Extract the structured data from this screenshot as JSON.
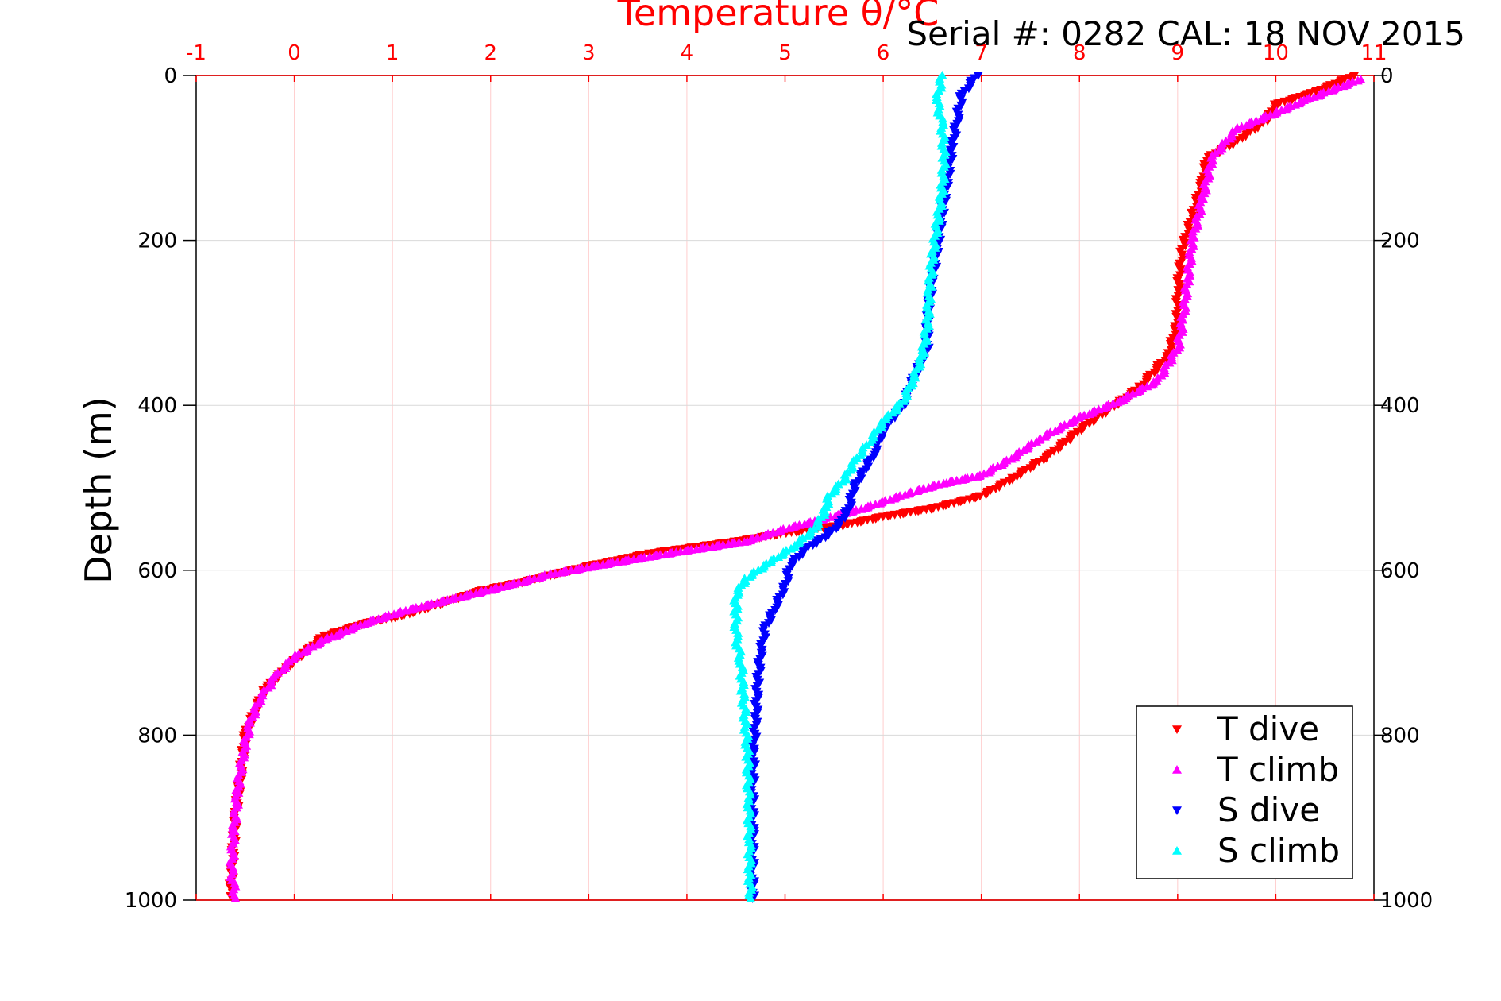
{
  "header": {
    "serial": "Serial #: 0282  CAL: 18 NOV 2015"
  },
  "chart_data": {
    "type": "scatter",
    "title": "Temperature θ/°C",
    "xlabel": "Temperature θ/°C",
    "ylabel": "Depth (m)",
    "xlim": [
      -1,
      11
    ],
    "ylim": [
      1000,
      0
    ],
    "x_ticks": [
      "-1",
      "0",
      "1",
      "2",
      "3",
      "4",
      "5",
      "6",
      "7",
      "8",
      "9",
      "10",
      "11"
    ],
    "y_ticks": [
      "0",
      "200",
      "400",
      "600",
      "800",
      "1000"
    ],
    "grid": true,
    "legend_position": "bottom-right",
    "colors": {
      "t_dive": "#ff0000",
      "t_climb": "#ff00ff",
      "s_dive": "#0000ff",
      "s_climb": "#00ffff",
      "top_axis": "#ff0000",
      "grid_x": "#ffcccc",
      "grid_y": "#d9d9d9"
    },
    "series": [
      {
        "name": "T dive",
        "marker": "triangle-down",
        "color": "#ff0000",
        "points": [
          [
            10.8,
            0
          ],
          [
            10.4,
            20
          ],
          [
            10.0,
            35
          ],
          [
            9.9,
            55
          ],
          [
            9.6,
            80
          ],
          [
            9.3,
            100
          ],
          [
            9.25,
            130
          ],
          [
            9.15,
            170
          ],
          [
            9.05,
            210
          ],
          [
            9.0,
            260
          ],
          [
            9.0,
            300
          ],
          [
            8.9,
            340
          ],
          [
            8.6,
            380
          ],
          [
            8.3,
            405
          ],
          [
            8.0,
            430
          ],
          [
            7.7,
            460
          ],
          [
            7.3,
            490
          ],
          [
            7.0,
            510
          ],
          [
            6.5,
            525
          ],
          [
            6.0,
            535
          ],
          [
            5.6,
            545
          ],
          [
            5.0,
            555
          ],
          [
            4.5,
            565
          ],
          [
            3.6,
            580
          ],
          [
            3.0,
            595
          ],
          [
            2.3,
            615
          ],
          [
            1.9,
            625
          ],
          [
            1.5,
            640
          ],
          [
            1.1,
            655
          ],
          [
            0.7,
            665
          ],
          [
            0.3,
            680
          ],
          [
            0.1,
            700
          ],
          [
            -0.1,
            720
          ],
          [
            -0.3,
            745
          ],
          [
            -0.4,
            770
          ],
          [
            -0.5,
            800
          ],
          [
            -0.55,
            850
          ],
          [
            -0.6,
            900
          ],
          [
            -0.63,
            950
          ],
          [
            -0.65,
            995
          ]
        ]
      },
      {
        "name": "T climb",
        "marker": "triangle-up",
        "color": "#ff00ff",
        "points": [
          [
            10.85,
            5
          ],
          [
            10.3,
            30
          ],
          [
            10.0,
            45
          ],
          [
            9.6,
            65
          ],
          [
            9.35,
            100
          ],
          [
            9.25,
            150
          ],
          [
            9.15,
            200
          ],
          [
            9.1,
            250
          ],
          [
            9.05,
            300
          ],
          [
            9.0,
            330
          ],
          [
            8.8,
            370
          ],
          [
            8.4,
            395
          ],
          [
            8.0,
            415
          ],
          [
            7.6,
            440
          ],
          [
            7.3,
            465
          ],
          [
            7.0,
            485
          ],
          [
            6.6,
            495
          ],
          [
            6.3,
            505
          ],
          [
            5.8,
            525
          ],
          [
            5.0,
            550
          ],
          [
            4.6,
            565
          ],
          [
            3.9,
            578
          ],
          [
            3.2,
            592
          ],
          [
            2.6,
            605
          ],
          [
            2.2,
            618
          ],
          [
            1.6,
            635
          ],
          [
            1.1,
            650
          ],
          [
            0.7,
            665
          ],
          [
            0.3,
            685
          ],
          [
            0.0,
            705
          ],
          [
            -0.2,
            730
          ],
          [
            -0.35,
            755
          ],
          [
            -0.45,
            785
          ],
          [
            -0.52,
            820
          ],
          [
            -0.58,
            870
          ],
          [
            -0.62,
            920
          ],
          [
            -0.64,
            965
          ],
          [
            -0.6,
            998
          ]
        ]
      },
      {
        "name": "S dive",
        "marker": "triangle-down",
        "color": "#0000ff",
        "points": [
          [
            6.95,
            0
          ],
          [
            6.8,
            25
          ],
          [
            6.75,
            55
          ],
          [
            6.7,
            90
          ],
          [
            6.65,
            130
          ],
          [
            6.6,
            170
          ],
          [
            6.55,
            210
          ],
          [
            6.5,
            250
          ],
          [
            6.45,
            290
          ],
          [
            6.45,
            330
          ],
          [
            6.3,
            370
          ],
          [
            6.2,
            400
          ],
          [
            6.0,
            430
          ],
          [
            5.9,
            460
          ],
          [
            5.8,
            480
          ],
          [
            5.7,
            500
          ],
          [
            5.65,
            525
          ],
          [
            5.55,
            545
          ],
          [
            5.4,
            560
          ],
          [
            5.2,
            575
          ],
          [
            5.05,
            595
          ],
          [
            5.0,
            620
          ],
          [
            4.9,
            645
          ],
          [
            4.8,
            670
          ],
          [
            4.75,
            700
          ],
          [
            4.72,
            740
          ],
          [
            4.7,
            780
          ],
          [
            4.68,
            820
          ],
          [
            4.67,
            870
          ],
          [
            4.67,
            920
          ],
          [
            4.67,
            970
          ],
          [
            4.67,
            998
          ]
        ]
      },
      {
        "name": "S climb",
        "marker": "triangle-up",
        "color": "#00ffff",
        "points": [
          [
            6.6,
            0
          ],
          [
            6.55,
            30
          ],
          [
            6.6,
            60
          ],
          [
            6.62,
            100
          ],
          [
            6.6,
            140
          ],
          [
            6.55,
            180
          ],
          [
            6.5,
            220
          ],
          [
            6.47,
            260
          ],
          [
            6.45,
            300
          ],
          [
            6.4,
            340
          ],
          [
            6.3,
            370
          ],
          [
            6.2,
            395
          ],
          [
            6.0,
            420
          ],
          [
            5.85,
            445
          ],
          [
            5.7,
            470
          ],
          [
            5.6,
            490
          ],
          [
            5.45,
            510
          ],
          [
            5.4,
            530
          ],
          [
            5.3,
            550
          ],
          [
            5.1,
            570
          ],
          [
            4.85,
            590
          ],
          [
            4.6,
            610
          ],
          [
            4.5,
            630
          ],
          [
            4.5,
            650
          ],
          [
            4.5,
            680
          ],
          [
            4.55,
            710
          ],
          [
            4.57,
            750
          ],
          [
            4.6,
            790
          ],
          [
            4.62,
            830
          ],
          [
            4.63,
            880
          ],
          [
            4.64,
            930
          ],
          [
            4.64,
            970
          ],
          [
            4.65,
            998
          ]
        ]
      }
    ]
  }
}
